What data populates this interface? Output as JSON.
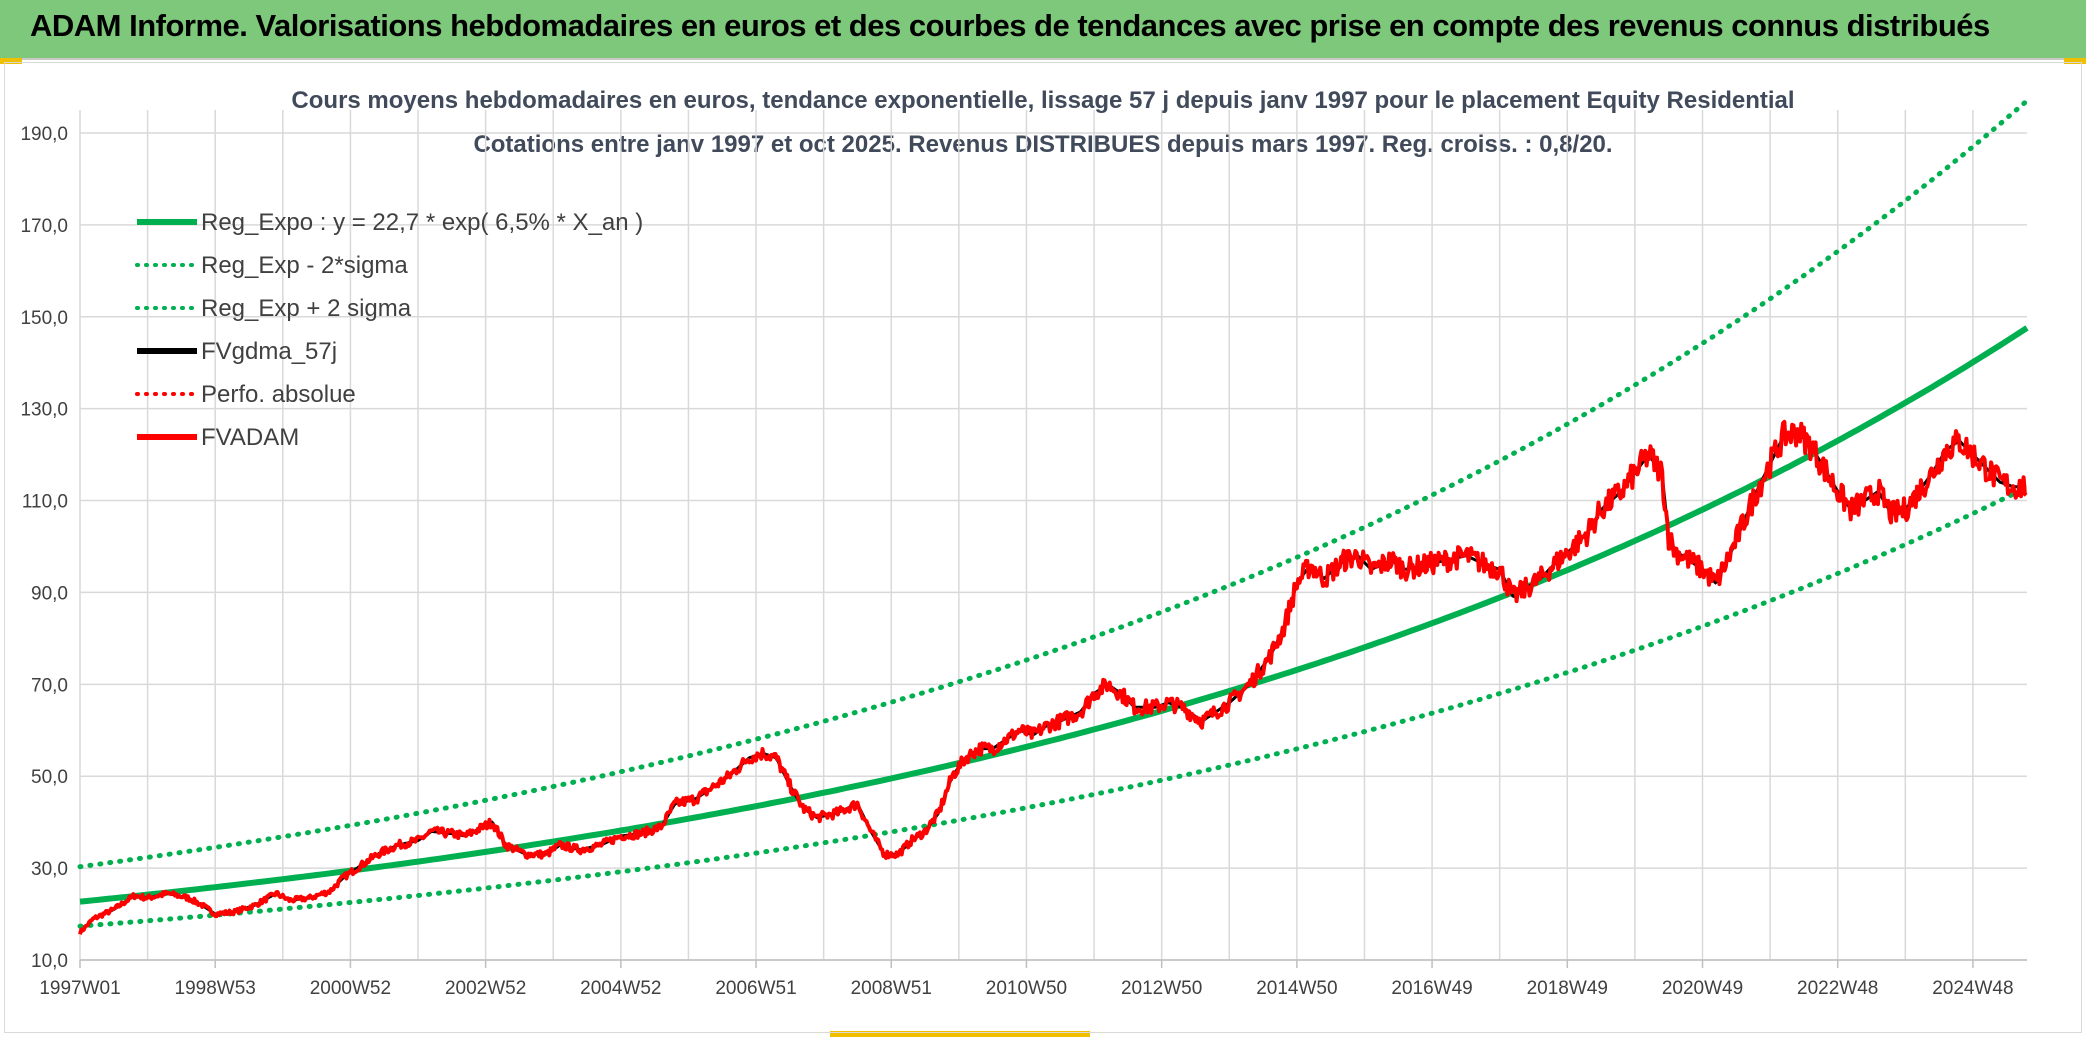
{
  "banner": {
    "title": "ADAM Informe. Valorisations hebdomadaires en euros et des courbes de tendances avec prise en compte des revenus connus distribués",
    "background": "#7dc87a"
  },
  "chart_data": {
    "type": "line",
    "title": "Cours moyens hebdomadaires en euros, tendance exponentielle, lissage 57 j depuis janv 1997 pour le placement Equity Residential",
    "subtitle": "Cotations entre janv 1997 et oct 2025. Revenus DISTRIBUES depuis mars 1997. Reg. croiss. : 0,8/20.",
    "xlabel": "",
    "ylabel": "",
    "xlim": [
      1997.0,
      2025.8
    ],
    "ylim": [
      10,
      195
    ],
    "y_ticks": [
      "10,0",
      "30,0",
      "50,0",
      "70,0",
      "90,0",
      "110,0",
      "130,0",
      "150,0",
      "170,0",
      "190,0"
    ],
    "y_tick_values": [
      10,
      30,
      50,
      70,
      90,
      110,
      130,
      150,
      170,
      190
    ],
    "x_ticks": [
      "1997W01",
      "1998W53",
      "2000W52",
      "2002W52",
      "2004W52",
      "2006W51",
      "2008W51",
      "2010W50",
      "2012W50",
      "2014W50",
      "2016W49",
      "2018W49",
      "2020W49",
      "2022W48",
      "2024W48"
    ],
    "x_tick_values": [
      1997.0,
      1999.0,
      2001.0,
      2003.0,
      2005.0,
      2007.0,
      2009.0,
      2011.0,
      2013.0,
      2015.0,
      2017.0,
      2019.0,
      2021.0,
      2023.0,
      2025.0
    ],
    "grid": true,
    "legend_position": "top-left",
    "regression": {
      "a": 22.7,
      "rate": 0.065,
      "sigma_factor_low": 0.765,
      "sigma_factor_high": 1.335
    },
    "series": [
      {
        "name": "Reg_Expo : y = 22,7 * exp( 6,5% *  X_an )",
        "color": "#00b050",
        "style": "solid",
        "kind": "regression"
      },
      {
        "name": "Reg_Exp - 2*sigma",
        "color": "#00b050",
        "style": "dotted",
        "kind": "regression_low"
      },
      {
        "name": "Reg_Exp + 2 sigma",
        "color": "#00b050",
        "style": "dotted",
        "kind": "regression_high"
      },
      {
        "name": "FVgdma_57j",
        "color": "#000000",
        "style": "solid",
        "kind": "smoothed"
      },
      {
        "name": "Perfo. absolue",
        "color": "#ff0000",
        "style": "dotted",
        "kind": "none"
      },
      {
        "name": "FVADAM",
        "color": "#ff0000",
        "style": "solid",
        "kind": "price"
      }
    ],
    "price_points": [
      [
        1997.0,
        16
      ],
      [
        1997.2,
        19
      ],
      [
        1997.5,
        21
      ],
      [
        1997.8,
        24
      ],
      [
        1998.0,
        23.5
      ],
      [
        1998.3,
        24.5
      ],
      [
        1998.6,
        23.5
      ],
      [
        1998.8,
        22
      ],
      [
        1999.0,
        20
      ],
      [
        1999.3,
        20.5
      ],
      [
        1999.6,
        22
      ],
      [
        1999.9,
        24.5
      ],
      [
        2000.1,
        23
      ],
      [
        2000.4,
        23.5
      ],
      [
        2000.7,
        25
      ],
      [
        2000.9,
        28
      ],
      [
        2001.1,
        30
      ],
      [
        2001.4,
        33
      ],
      [
        2001.7,
        35
      ],
      [
        2002.0,
        36
      ],
      [
        2002.2,
        38
      ],
      [
        2002.5,
        37.5
      ],
      [
        2002.7,
        37
      ],
      [
        2002.9,
        38.5
      ],
      [
        2003.1,
        40
      ],
      [
        2003.3,
        35
      ],
      [
        2003.6,
        33
      ],
      [
        2003.9,
        33
      ],
      [
        2004.1,
        35
      ],
      [
        2004.4,
        34
      ],
      [
        2004.7,
        35
      ],
      [
        2005.0,
        37
      ],
      [
        2005.3,
        37.5
      ],
      [
        2005.6,
        39
      ],
      [
        2005.8,
        44
      ],
      [
        2006.1,
        45
      ],
      [
        2006.4,
        48
      ],
      [
        2006.6,
        50
      ],
      [
        2006.9,
        54
      ],
      [
        2007.1,
        55
      ],
      [
        2007.3,
        54
      ],
      [
        2007.5,
        48
      ],
      [
        2007.7,
        43
      ],
      [
        2007.9,
        41
      ],
      [
        2008.2,
        42
      ],
      [
        2008.5,
        44
      ],
      [
        2008.7,
        38
      ],
      [
        2008.9,
        33
      ],
      [
        2009.1,
        33
      ],
      [
        2009.3,
        36
      ],
      [
        2009.5,
        38
      ],
      [
        2009.7,
        42
      ],
      [
        2009.9,
        50
      ],
      [
        2010.1,
        54
      ],
      [
        2010.3,
        56
      ],
      [
        2010.5,
        56
      ],
      [
        2010.7,
        58
      ],
      [
        2010.9,
        60
      ],
      [
        2011.1,
        59
      ],
      [
        2011.3,
        61
      ],
      [
        2011.5,
        62
      ],
      [
        2011.8,
        64
      ],
      [
        2012.0,
        68
      ],
      [
        2012.2,
        70
      ],
      [
        2012.4,
        68
      ],
      [
        2012.6,
        65
      ],
      [
        2012.9,
        65
      ],
      [
        2013.1,
        66
      ],
      [
        2013.3,
        65
      ],
      [
        2013.6,
        62
      ],
      [
        2013.8,
        64
      ],
      [
        2014.0,
        66
      ],
      [
        2014.3,
        70
      ],
      [
        2014.6,
        76
      ],
      [
        2014.8,
        82
      ],
      [
        2015.0,
        92
      ],
      [
        2015.2,
        96
      ],
      [
        2015.4,
        93
      ],
      [
        2015.7,
        97
      ],
      [
        2015.9,
        98
      ],
      [
        2016.1,
        95
      ],
      [
        2016.4,
        97
      ],
      [
        2016.6,
        95
      ],
      [
        2016.9,
        96
      ],
      [
        2017.2,
        97
      ],
      [
        2017.5,
        98
      ],
      [
        2017.8,
        96
      ],
      [
        2018.0,
        95
      ],
      [
        2018.2,
        89
      ],
      [
        2018.4,
        91
      ],
      [
        2018.6,
        93
      ],
      [
        2018.8,
        96
      ],
      [
        2019.1,
        100
      ],
      [
        2019.3,
        103
      ],
      [
        2019.5,
        108
      ],
      [
        2019.8,
        112
      ],
      [
        2020.0,
        116
      ],
      [
        2020.2,
        120
      ],
      [
        2020.4,
        116
      ],
      [
        2020.5,
        102
      ],
      [
        2020.6,
        99
      ],
      [
        2020.8,
        97
      ],
      [
        2021.0,
        95
      ],
      [
        2021.2,
        92
      ],
      [
        2021.4,
        98
      ],
      [
        2021.6,
        105
      ],
      [
        2021.8,
        112
      ],
      [
        2022.0,
        118
      ],
      [
        2022.2,
        124
      ],
      [
        2022.4,
        125
      ],
      [
        2022.6,
        122
      ],
      [
        2022.8,
        117
      ],
      [
        2023.0,
        112
      ],
      [
        2023.2,
        108
      ],
      [
        2023.4,
        110
      ],
      [
        2023.6,
        112
      ],
      [
        2023.8,
        107
      ],
      [
        2024.0,
        108
      ],
      [
        2024.2,
        112
      ],
      [
        2024.4,
        116
      ],
      [
        2024.6,
        121
      ],
      [
        2024.8,
        123
      ],
      [
        2025.0,
        120
      ],
      [
        2025.2,
        117
      ],
      [
        2025.4,
        114
      ],
      [
        2025.6,
        113
      ],
      [
        2025.8,
        113
      ]
    ]
  }
}
